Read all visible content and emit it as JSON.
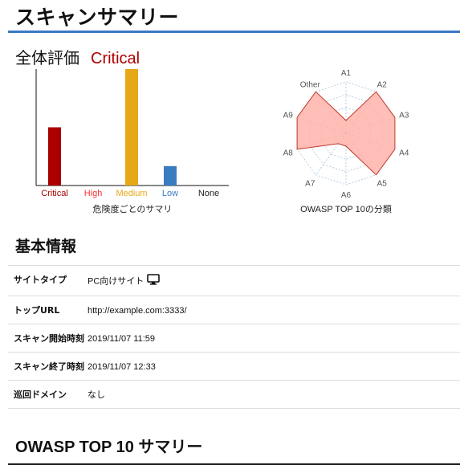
{
  "page": {
    "title": "スキャンサマリー"
  },
  "overall": {
    "label": "全体評価",
    "value": "Critical",
    "value_color": "#b00000"
  },
  "chart_data": [
    {
      "type": "bar",
      "categories": [
        "Critical",
        "High",
        "Medium",
        "Low",
        "None"
      ],
      "values": [
        6,
        0,
        12,
        2,
        0
      ],
      "colors": [
        "#aa0000",
        "#ff0000",
        "#e6a817",
        "#3a7cc0",
        "#222222"
      ],
      "label_colors": [
        "#aa0000",
        "#ff3333",
        "#e6a817",
        "#3a7cc0",
        "#222222"
      ],
      "ylim": [
        0,
        12
      ],
      "title": "危険度ごとのサマリ",
      "grid": false
    },
    {
      "type": "radar",
      "categories": [
        "A1",
        "A2",
        "A3",
        "A4",
        "A5",
        "A6",
        "A7",
        "A8",
        "A9",
        "Other"
      ],
      "values": [
        1,
        4,
        4,
        4,
        4,
        1,
        1,
        4,
        4,
        4
      ],
      "rmax": 4,
      "fill_color": "#ffb3aa",
      "stroke_color": "#c0392b",
      "title": "OWASP TOP 10の分類"
    }
  ],
  "basic_info": {
    "heading": "基本情報",
    "rows": [
      {
        "key": "サイトタイプ",
        "value": "PC向けサイト"
      },
      {
        "key": "トップURL",
        "value": "http://example.com:3333/"
      },
      {
        "key": "スキャン開始時刻",
        "value": "2019/11/07 11:59"
      },
      {
        "key": "スキャン終了時刻",
        "value": "2019/11/07 12:33"
      },
      {
        "key": "巡回ドメイン",
        "value": "なし"
      }
    ],
    "site_type_icon": "monitor-icon"
  },
  "owasp_summary": {
    "heading": "OWASP TOP 10 サマリー"
  }
}
